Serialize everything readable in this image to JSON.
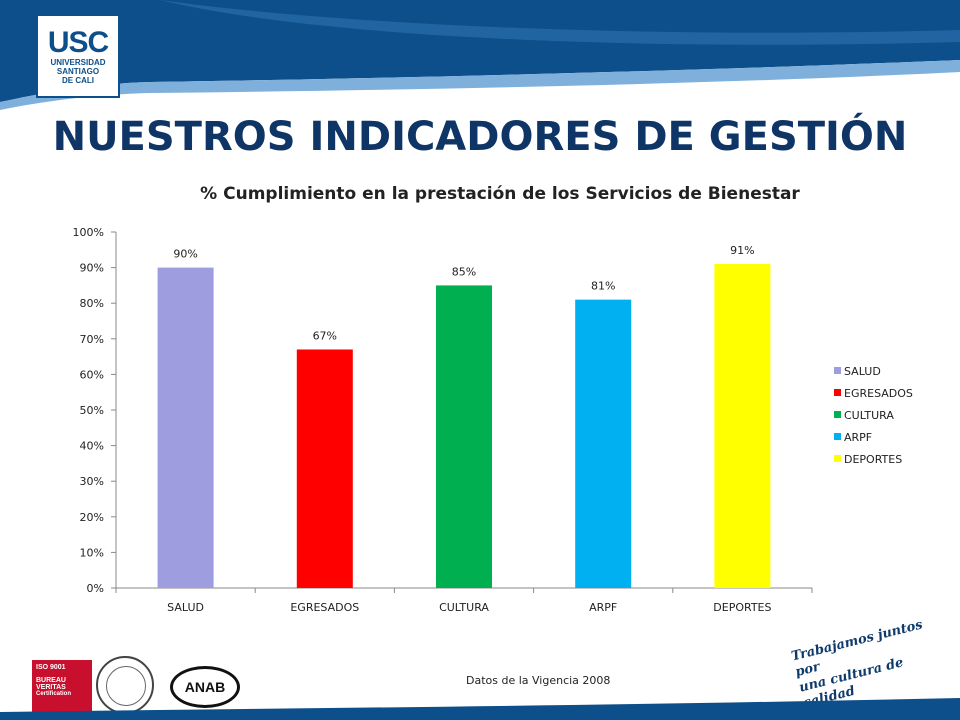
{
  "header": {
    "logo_main": "USC",
    "logo_line1": "UNIVERSIDAD",
    "logo_line2": "SANTIAGO",
    "logo_line3": "DE CALI",
    "page_title": "NUESTROS INDICADORES DE GESTIÓN"
  },
  "colors": {
    "header_blue": "#0d4f8a",
    "title_navy": "#0e3566"
  },
  "chart_data": {
    "type": "bar",
    "title": "% Cumplimiento en la prestación de los Servicios de Bienestar",
    "categories": [
      "SALUD",
      "EGRESADOS",
      "CULTURA",
      "ARPF",
      "DEPORTES"
    ],
    "values": [
      90,
      67,
      85,
      81,
      91
    ],
    "data_labels": [
      "90%",
      "67%",
      "85%",
      "81%",
      "91%"
    ],
    "colors": [
      "#9d9ddf",
      "#ff0000",
      "#00b050",
      "#00b0f0",
      "#ffff00"
    ],
    "ylim": [
      0,
      100
    ],
    "yticks": [
      0,
      10,
      20,
      30,
      40,
      50,
      60,
      70,
      80,
      90,
      100
    ],
    "ytick_labels": [
      "0%",
      "10%",
      "20%",
      "30%",
      "40%",
      "50%",
      "60%",
      "70%",
      "80%",
      "90%",
      "100%"
    ],
    "xlabel": "",
    "ylabel": "",
    "grid": false,
    "legend_placement": "right",
    "legend": [
      "SALUD",
      "EGRESADOS",
      "CULTURA",
      "ARPF",
      "DEPORTES"
    ]
  },
  "footer": {
    "source_note": "Datos de la Vigencia 2008",
    "cert_line1": "ISO 9001",
    "cert_line2": "BUREAU VERITAS",
    "cert_line3": "Certification",
    "anab_label": "ANAB",
    "slogan_line1": "Trabajamos juntos por",
    "slogan_line2": "una cultura de calidad"
  }
}
